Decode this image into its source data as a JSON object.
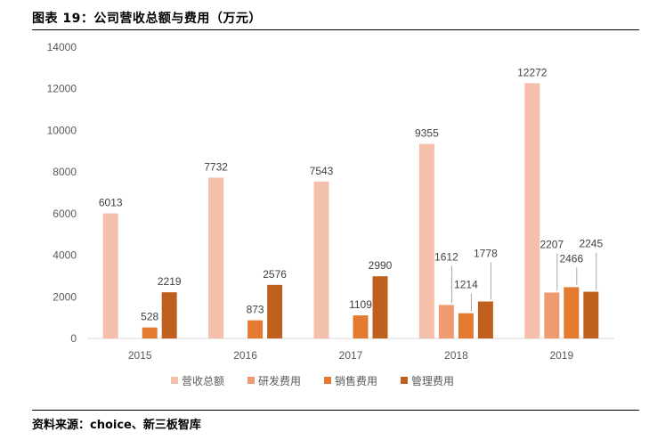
{
  "header": {
    "title": "图表 19：公司营收总额与费用（万元）"
  },
  "footer": {
    "source": "资料来源：choice、新三板智库"
  },
  "chart_data": {
    "type": "bar",
    "title": "图表 19：公司营收总额与费用（万元）",
    "xlabel": "",
    "ylabel": "",
    "categories": [
      "2015",
      "2016",
      "2017",
      "2018",
      "2019"
    ],
    "ylim": [
      0,
      14000
    ],
    "yticks": [
      0,
      2000,
      4000,
      6000,
      8000,
      10000,
      12000,
      14000
    ],
    "grid": false,
    "legend_position": "bottom",
    "series": [
      {
        "name": "营收总额",
        "color": "#F4C0AC",
        "values": [
          6013,
          7732,
          7543,
          9355,
          12272
        ]
      },
      {
        "name": "研发费用",
        "color": "#EE9B72",
        "values": [
          null,
          null,
          null,
          1612,
          2207
        ]
      },
      {
        "name": "销售费用",
        "color": "#E47A2F",
        "values": [
          528,
          873,
          1109,
          1214,
          2466
        ]
      },
      {
        "name": "管理费用",
        "color": "#C0601E",
        "values": [
          2219,
          2576,
          2990,
          1778,
          2245
        ]
      }
    ]
  }
}
